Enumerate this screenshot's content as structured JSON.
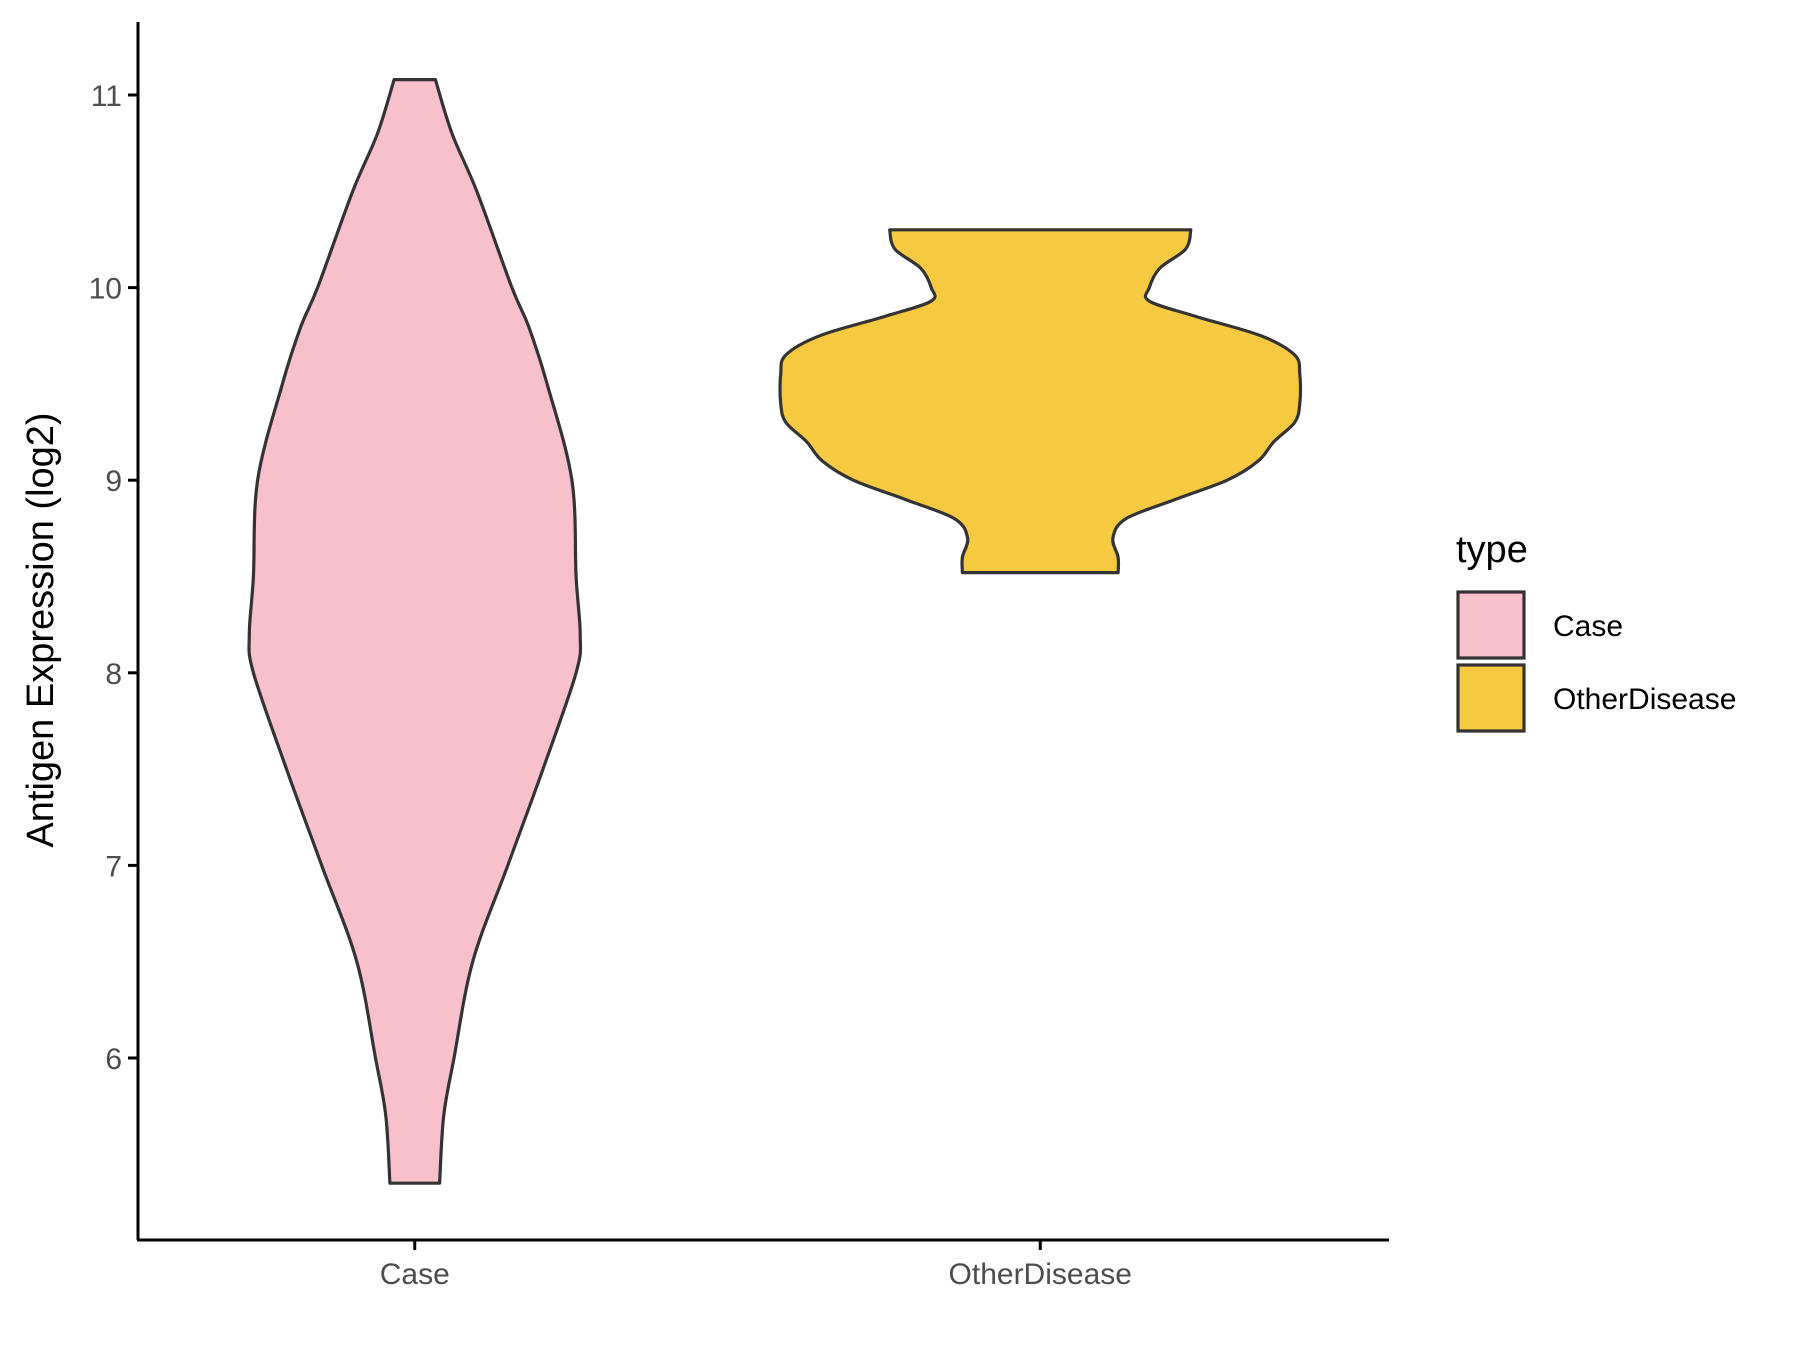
{
  "chart_data": {
    "type": "violin",
    "title": "",
    "xlabel": "",
    "ylabel": "Antigen Expression (log2)",
    "ylim": [
      5.2,
      11.4
    ],
    "yticks": [
      6,
      7,
      8,
      9,
      10,
      11
    ],
    "categories": [
      "Case",
      "OtherDisease"
    ],
    "grid": false,
    "legend": {
      "title": "type",
      "position": "right",
      "entries": [
        "Case",
        "OtherDisease"
      ]
    },
    "colors": {
      "Case": "#f7c0cb",
      "OtherDisease": "#f5c940",
      "outline": "#333333"
    },
    "series": [
      {
        "name": "Case",
        "min": 5.35,
        "max": 11.08,
        "density_profile": [
          [
            5.35,
            0.12
          ],
          [
            5.7,
            0.14
          ],
          [
            6.0,
            0.19
          ],
          [
            6.5,
            0.28
          ],
          [
            7.0,
            0.45
          ],
          [
            7.5,
            0.62
          ],
          [
            8.0,
            0.78
          ],
          [
            8.2,
            0.8
          ],
          [
            8.5,
            0.78
          ],
          [
            9.0,
            0.76
          ],
          [
            9.5,
            0.64
          ],
          [
            9.8,
            0.55
          ],
          [
            10.0,
            0.47
          ],
          [
            10.5,
            0.3
          ],
          [
            10.8,
            0.18
          ],
          [
            11.08,
            0.1
          ]
        ]
      },
      {
        "name": "OtherDisease",
        "min": 8.52,
        "max": 10.3,
        "density_profile": [
          [
            8.52,
            0.3
          ],
          [
            8.6,
            0.3
          ],
          [
            8.7,
            0.28
          ],
          [
            8.8,
            0.33
          ],
          [
            8.9,
            0.52
          ],
          [
            9.0,
            0.72
          ],
          [
            9.1,
            0.84
          ],
          [
            9.2,
            0.9
          ],
          [
            9.3,
            0.98
          ],
          [
            9.4,
            1.0
          ],
          [
            9.55,
            1.0
          ],
          [
            9.65,
            0.98
          ],
          [
            9.75,
            0.85
          ],
          [
            9.85,
            0.6
          ],
          [
            9.93,
            0.42
          ],
          [
            10.0,
            0.42
          ],
          [
            10.1,
            0.46
          ],
          [
            10.2,
            0.56
          ],
          [
            10.3,
            0.58
          ]
        ]
      }
    ]
  }
}
